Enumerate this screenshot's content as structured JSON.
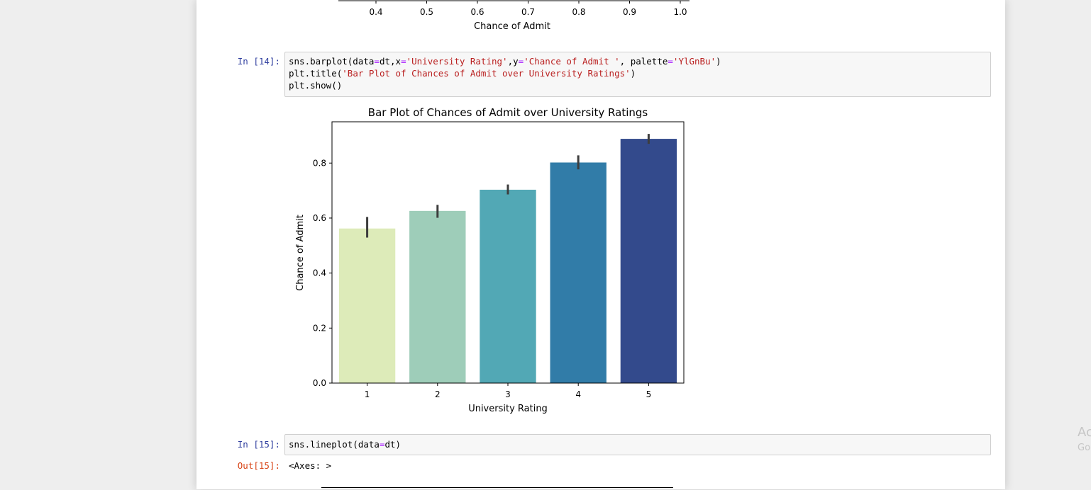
{
  "prev_plot": {
    "ticks": [
      "0.4",
      "0.5",
      "0.6",
      "0.7",
      "0.8",
      "0.9",
      "1.0"
    ],
    "xlabel": "Chance of Admit"
  },
  "cells": [
    {
      "prompt": "In [14]:",
      "code": [
        [
          [
            "sns.barplot(data",
            ""
          ],
          [
            "=",
            "o"
          ],
          [
            "dt,x",
            ""
          ],
          [
            "=",
            "o"
          ],
          [
            "'University Rating'",
            "s"
          ],
          [
            ",y",
            ""
          ],
          [
            "=",
            "o"
          ],
          [
            "'Chance of Admit '",
            "s"
          ],
          [
            ", palette",
            ""
          ],
          [
            "=",
            "o"
          ],
          [
            "'YlGnBu'",
            "s"
          ],
          [
            ")",
            ""
          ]
        ],
        [
          [
            "plt.title(",
            ""
          ],
          [
            "'Bar Plot of Chances of Admit over University Ratings'",
            "s"
          ],
          [
            ")",
            ""
          ]
        ],
        [
          [
            "plt.show()",
            ""
          ]
        ]
      ]
    },
    {
      "prompt": "In [15]:",
      "code": [
        [
          [
            "sns.lineplot(data",
            ""
          ],
          [
            "=",
            "o"
          ],
          [
            "dt)",
            ""
          ]
        ]
      ],
      "out_prompt": "Out[15]:",
      "output": "<Axes: >"
    }
  ],
  "chart_data": {
    "type": "bar",
    "title": "Bar Plot of Chances of Admit over University Ratings",
    "xlabel": "University Rating",
    "ylabel": "Chance of Admit",
    "categories": [
      "1",
      "2",
      "3",
      "4",
      "5"
    ],
    "values": [
      0.562,
      0.626,
      0.703,
      0.802,
      0.888
    ],
    "errors": [
      [
        0.529,
        0.604
      ],
      [
        0.601,
        0.648
      ],
      [
        0.686,
        0.722
      ],
      [
        0.777,
        0.828
      ],
      [
        0.87,
        0.906
      ]
    ],
    "colors": [
      "#ddebb9",
      "#9ecdb9",
      "#52a8b5",
      "#317ca8",
      "#334a8c"
    ],
    "ylim": [
      0,
      0.95
    ],
    "yticks": [
      0.0,
      0.2,
      0.4,
      0.6,
      0.8
    ],
    "ytick_labels": [
      "0.0",
      "0.2",
      "0.4",
      "0.6",
      "0.8"
    ],
    "grid": false,
    "legend": "none"
  },
  "watermark": [
    "Ac",
    "Go"
  ]
}
